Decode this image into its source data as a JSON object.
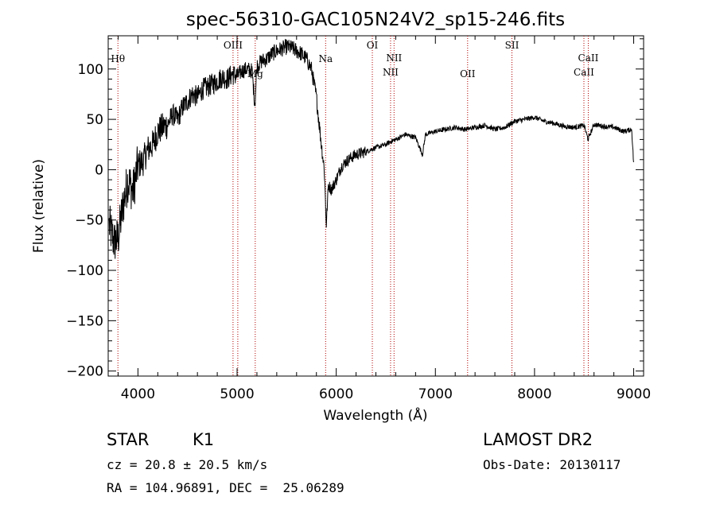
{
  "chart_data": {
    "type": "line",
    "title": "spec-56310-GAC105N24V2_sp15-246.fits",
    "xlabel": "Wavelength (Å)",
    "ylabel": "Flux (relative)",
    "xlim": [
      3700,
      9100
    ],
    "ylim": [
      -205,
      133
    ],
    "grid": false,
    "x_ticks": [
      4000,
      5000,
      6000,
      7000,
      8000,
      9000
    ],
    "y_ticks": [
      -200,
      -150,
      -100,
      -50,
      0,
      50,
      100
    ],
    "x": [
      3710,
      3760,
      3800,
      3850,
      3900,
      3950,
      4000,
      4050,
      4100,
      4150,
      4200,
      4250,
      4300,
      4350,
      4400,
      4450,
      4500,
      4550,
      4600,
      4650,
      4700,
      4750,
      4800,
      4850,
      4900,
      4950,
      5000,
      5050,
      5100,
      5150,
      5180,
      5200,
      5250,
      5300,
      5350,
      5400,
      5450,
      5500,
      5550,
      5600,
      5650,
      5700,
      5750,
      5800,
      5850,
      5880,
      5900,
      5920,
      5950,
      6000,
      6050,
      6100,
      6150,
      6200,
      6300,
      6400,
      6500,
      6550,
      6600,
      6700,
      6800,
      6870,
      6900,
      7000,
      7100,
      7200,
      7300,
      7400,
      7500,
      7600,
      7700,
      7800,
      7900,
      8000,
      8100,
      8200,
      8300,
      8400,
      8500,
      8540,
      8600,
      8700,
      8800,
      8900,
      8980,
      9000
    ],
    "values": [
      -55,
      -72,
      -68,
      -35,
      -10,
      -22,
      5,
      8,
      20,
      25,
      38,
      42,
      45,
      55,
      50,
      62,
      68,
      75,
      72,
      80,
      82,
      85,
      88,
      92,
      90,
      95,
      93,
      98,
      100,
      98,
      65,
      103,
      108,
      110,
      115,
      118,
      120,
      122,
      121,
      118,
      115,
      110,
      100,
      72,
      25,
      0,
      -55,
      -15,
      -20,
      -10,
      3,
      8,
      12,
      15,
      18,
      22,
      25,
      28,
      30,
      35,
      32,
      15,
      35,
      38,
      40,
      42,
      40,
      42,
      44,
      40,
      42,
      48,
      50,
      52,
      48,
      46,
      43,
      42,
      44,
      30,
      45,
      43,
      42,
      38,
      40,
      5
    ],
    "annotations": [
      {
        "label": "Hθ",
        "x": 3798
      },
      {
        "label": "OIII",
        "x": 4959
      },
      {
        "label": "",
        "x": 5007
      },
      {
        "label": "Mg",
        "x": 5183
      },
      {
        "label": "Na",
        "x": 5893
      },
      {
        "label": "OI",
        "x": 6364
      },
      {
        "label": "NII",
        "x": 6548
      },
      {
        "label": "NII",
        "x": 6583
      },
      {
        "label": "OII",
        "x": 7325
      },
      {
        "label": "SII",
        "x": 7772
      },
      {
        "label": "CaII",
        "x": 8498
      },
      {
        "label": "CaII",
        "x": 8542
      }
    ],
    "line_color": "#000000",
    "annotation_color": "#b00000"
  },
  "info": {
    "class": "STAR",
    "subclass": "K1",
    "cz": "cz = 20.8 ± 20.5 km/s",
    "radec": "RA = 104.96891, DEC =  25.06289",
    "survey": "LAMOST DR2",
    "obsdate": "Obs-Date: 20130117"
  }
}
